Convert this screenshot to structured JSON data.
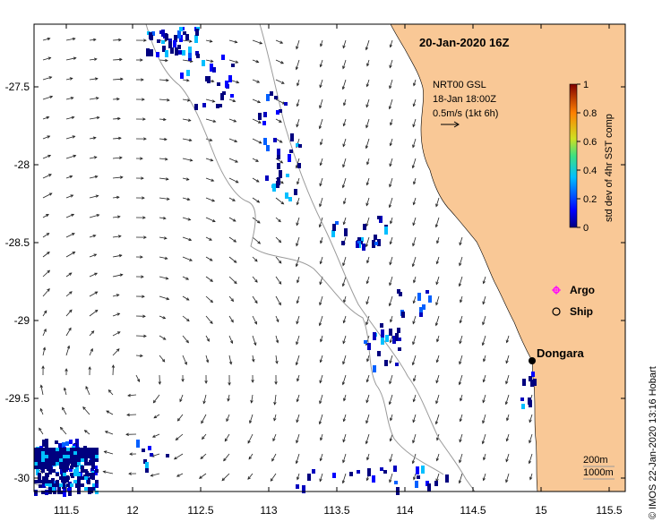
{
  "title": "20-Jan-2020 16Z",
  "product": {
    "line1": "NRT00 GSL",
    "line2": "18-Jan 18:00Z",
    "line3": "0.5m/s (1kt 6h)"
  },
  "colorbar": {
    "label": "std dev of 4hr SST comp",
    "ticks": [
      "1",
      "0.8",
      "0.6",
      "0.4",
      "0.2",
      "0"
    ]
  },
  "legend": {
    "argo": "Argo",
    "ship": "Ship"
  },
  "place": "Dongara",
  "isobaths": {
    "shallow": "200m",
    "deep": "1000m"
  },
  "credit": "© IMOS 22-Jan-2020 13:16 Hobart",
  "axes": {
    "x_ticks": [
      "111.5",
      "12",
      "112.5",
      "113",
      "113.5",
      "114",
      "114.5",
      "15",
      "115.5"
    ],
    "y_ticks": [
      "-27.5",
      "-28",
      "-28.5",
      "-29",
      "-29.5",
      "-30"
    ]
  },
  "colors": {
    "land": "#f9c896",
    "ocean": "#ffffff",
    "arrow": "#222222",
    "argo": "#ff00ff",
    "pixel_low": "#00007f",
    "pixel_mid": "#00bfff"
  }
}
